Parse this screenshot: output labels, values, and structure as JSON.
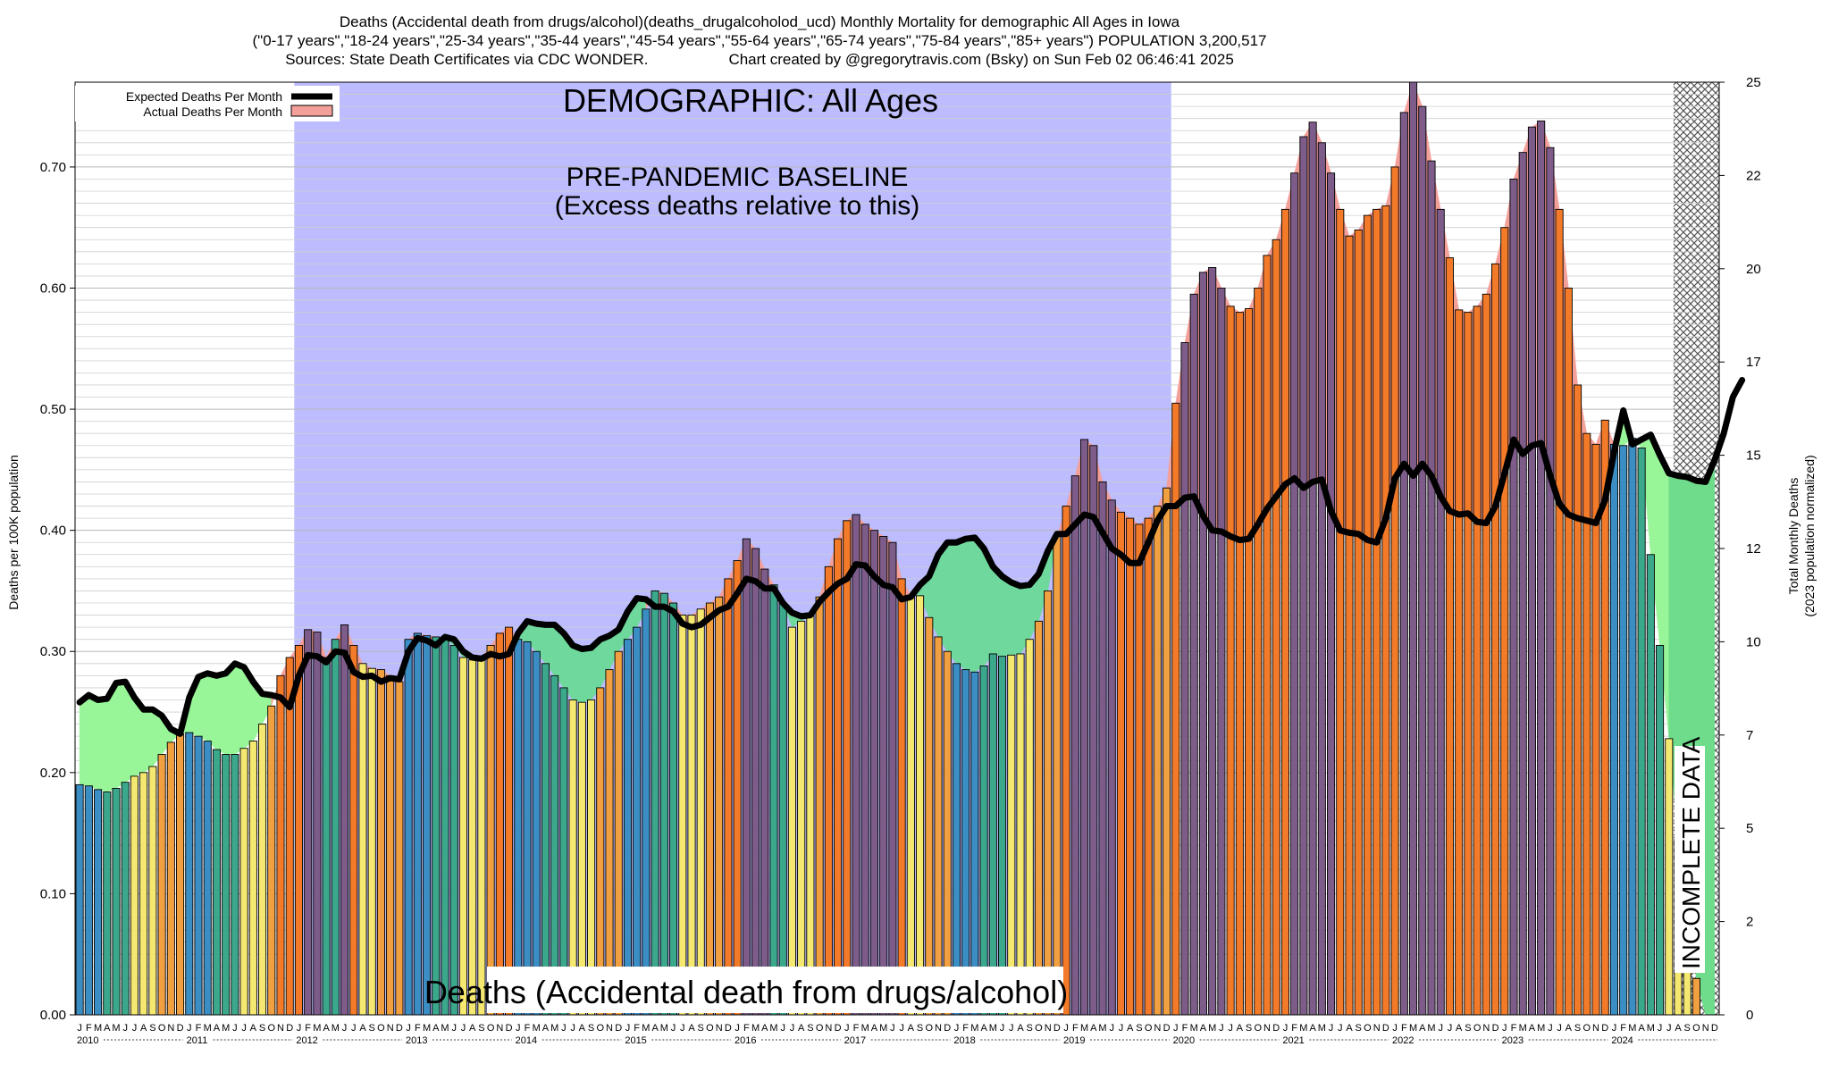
{
  "title": {
    "line1": "Deaths (Accidental death from drugs/alcohol)(deaths_drugalcoholod_ucd) Monthly Mortality for demographic All Ages in Iowa",
    "line2": "(\"0-17 years\",\"18-24 years\",\"25-34 years\",\"35-44 years\",\"45-54 years\",\"55-64 years\",\"65-74 years\",\"75-84 years\",\"85+ years\") POPULATION 3,200,517",
    "line3_left": "Sources: State Death Certificates via CDC WONDER.",
    "line3_right": "Chart created by @gregorytravis.com (Bsky) on Sun Feb 02 06:46:41 2025"
  },
  "colors": {
    "baseline_band": "#bcbcff",
    "excess_fill": "#f4a09a",
    "deficit_fill": "#98f598",
    "deficit_fill_dark": "#6fd89c",
    "expected_line": "#000000",
    "hatch": "#555555",
    "bar_blue": "#3a8ec4",
    "bar_teal": "#3ba88c",
    "bar_orange": "#f0a040",
    "bar_yellow": "#f5e870",
    "bar_dark_orange": "#f27a28",
    "bar_purple": "#7e5c8a"
  },
  "annotations": {
    "demographic": "DEMOGRAPHIC: All Ages",
    "baseline_line1": "PRE-PANDEMIC BASELINE",
    "baseline_line2": "(Excess deaths relative to this)",
    "incomplete": "INCOMPLETE DATA",
    "bottom_label": "Deaths (Accidental death from drugs/alcohol)"
  },
  "legend": {
    "expected": "Expected Deaths Per Month",
    "actual": "Actual Deaths Per Month"
  },
  "chart_data": {
    "type": "bar",
    "ylabel": "Deaths per 100K population",
    "y2label_line1": "Total Monthly Deaths",
    "y2label_line2": "(2023 population normalized)",
    "ylim": [
      0,
      0.77
    ],
    "y2lim": [
      0,
      25
    ],
    "yticks": [
      "0.00",
      "0.10",
      "0.20",
      "0.30",
      "0.40",
      "0.50",
      "0.60",
      "0.70"
    ],
    "y2ticks": [
      "0",
      "2",
      "5",
      "7",
      "10",
      "12",
      "15",
      "17",
      "20",
      "22",
      "25"
    ],
    "years": [
      "2010",
      "2011",
      "2012",
      "2013",
      "2014",
      "2015",
      "2016",
      "2017",
      "2018",
      "2019",
      "2020",
      "2021",
      "2022",
      "2023",
      "2024"
    ],
    "month_letters": [
      "J",
      "F",
      "M",
      "A",
      "M",
      "J",
      "J",
      "A",
      "S",
      "O",
      "N",
      "D"
    ],
    "baseline_period": [
      "2012-01",
      "2019-12"
    ],
    "incomplete_from": "2024-08",
    "actual": [
      0.19,
      0.189,
      0.186,
      0.184,
      0.187,
      0.192,
      0.197,
      0.2,
      0.205,
      0.215,
      0.225,
      0.232,
      0.233,
      0.23,
      0.226,
      0.219,
      0.215,
      0.215,
      0.22,
      0.226,
      0.24,
      0.255,
      0.28,
      0.295,
      0.305,
      0.318,
      0.316,
      0.295,
      0.31,
      0.322,
      0.305,
      0.29,
      0.286,
      0.285,
      0.28,
      0.275,
      0.31,
      0.315,
      0.313,
      0.312,
      0.31,
      0.305,
      0.295,
      0.293,
      0.295,
      0.305,
      0.315,
      0.32,
      0.31,
      0.308,
      0.3,
      0.29,
      0.28,
      0.27,
      0.26,
      0.258,
      0.26,
      0.27,
      0.285,
      0.3,
      0.31,
      0.32,
      0.335,
      0.35,
      0.348,
      0.34,
      0.33,
      0.33,
      0.335,
      0.34,
      0.345,
      0.36,
      0.375,
      0.393,
      0.385,
      0.368,
      0.355,
      0.34,
      0.32,
      0.325,
      0.33,
      0.345,
      0.37,
      0.393,
      0.408,
      0.413,
      0.405,
      0.4,
      0.395,
      0.39,
      0.36,
      0.346,
      0.346,
      0.328,
      0.312,
      0.3,
      0.29,
      0.285,
      0.283,
      0.288,
      0.298,
      0.296,
      0.297,
      0.298,
      0.31,
      0.325,
      0.35,
      0.395,
      0.42,
      0.445,
      0.475,
      0.47,
      0.44,
      0.425,
      0.415,
      0.41,
      0.405,
      0.41,
      0.42,
      0.435,
      0.505,
      0.555,
      0.595,
      0.613,
      0.617,
      0.6,
      0.585,
      0.58,
      0.583,
      0.6,
      0.627,
      0.64,
      0.665,
      0.695,
      0.725,
      0.737,
      0.72,
      0.695,
      0.665,
      0.643,
      0.648,
      0.66,
      0.665,
      0.668,
      0.7,
      0.745,
      0.77,
      0.75,
      0.705,
      0.665,
      0.625,
      0.582,
      0.58,
      0.585,
      0.595,
      0.62,
      0.65,
      0.69,
      0.712,
      0.733,
      0.738,
      0.716,
      0.665,
      0.6,
      0.52,
      0.48,
      0.471,
      0.491,
      0.471,
      0.47,
      0.476,
      0.468,
      0.38,
      0.305,
      0.228,
      0.145,
      0.09,
      0.03,
      0.0,
      0.0
    ],
    "expected": [
      0.258,
      0.264,
      0.26,
      0.261,
      0.274,
      0.275,
      0.262,
      0.252,
      0.252,
      0.247,
      0.236,
      0.232,
      0.262,
      0.279,
      0.282,
      0.28,
      0.282,
      0.29,
      0.287,
      0.275,
      0.265,
      0.264,
      0.262,
      0.254,
      0.28,
      0.297,
      0.296,
      0.291,
      0.3,
      0.299,
      0.283,
      0.279,
      0.28,
      0.275,
      0.278,
      0.277,
      0.3,
      0.311,
      0.309,
      0.305,
      0.312,
      0.31,
      0.3,
      0.295,
      0.294,
      0.298,
      0.296,
      0.298,
      0.315,
      0.325,
      0.323,
      0.322,
      0.322,
      0.315,
      0.305,
      0.302,
      0.303,
      0.31,
      0.313,
      0.318,
      0.333,
      0.344,
      0.343,
      0.337,
      0.337,
      0.333,
      0.323,
      0.32,
      0.322,
      0.328,
      0.334,
      0.337,
      0.348,
      0.36,
      0.358,
      0.352,
      0.352,
      0.34,
      0.332,
      0.329,
      0.33,
      0.341,
      0.349,
      0.356,
      0.36,
      0.372,
      0.371,
      0.362,
      0.355,
      0.353,
      0.343,
      0.345,
      0.355,
      0.362,
      0.38,
      0.39,
      0.39,
      0.393,
      0.394,
      0.385,
      0.37,
      0.362,
      0.357,
      0.354,
      0.355,
      0.364,
      0.383,
      0.397,
      0.397,
      0.405,
      0.413,
      0.411,
      0.398,
      0.385,
      0.38,
      0.373,
      0.373,
      0.39,
      0.408,
      0.42,
      0.42,
      0.427,
      0.428,
      0.412,
      0.4,
      0.399,
      0.395,
      0.392,
      0.393,
      0.405,
      0.418,
      0.428,
      0.438,
      0.443,
      0.435,
      0.44,
      0.442,
      0.416,
      0.4,
      0.398,
      0.397,
      0.392,
      0.39,
      0.41,
      0.443,
      0.455,
      0.445,
      0.455,
      0.445,
      0.428,
      0.416,
      0.413,
      0.414,
      0.407,
      0.406,
      0.42,
      0.447,
      0.475,
      0.463,
      0.47,
      0.472,
      0.445,
      0.422,
      0.413,
      0.41,
      0.408,
      0.406,
      0.425,
      0.465,
      0.499,
      0.471,
      0.475,
      0.479,
      0.462,
      0.447,
      0.445,
      0.444,
      0.441,
      0.44,
      0.458,
      0.48,
      0.51,
      0.524
    ]
  }
}
